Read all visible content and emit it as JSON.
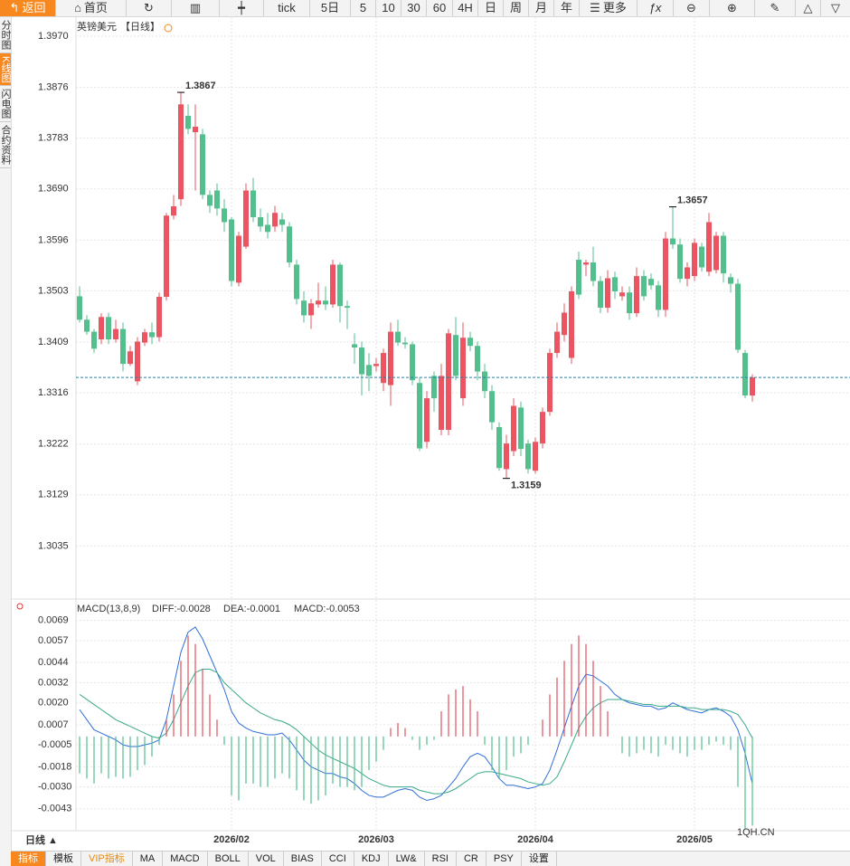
{
  "toolbar": {
    "back": "返回",
    "home": "首页",
    "items": [
      "tick",
      "5日",
      "5",
      "10",
      "30",
      "60",
      "4H",
      "日",
      "周",
      "月",
      "年"
    ],
    "more": "更多"
  },
  "sidebar": [
    "分时图",
    "K线图",
    "闪电图",
    "合约资料"
  ],
  "chart_data": [
    {
      "type": "candlestick",
      "title": "英镑美元",
      "subtitle": "【日线】",
      "categories": [
        null,
        null,
        null,
        null,
        null,
        null,
        null,
        null,
        null,
        null,
        null,
        null,
        null,
        null,
        null,
        null,
        null,
        null,
        null,
        null,
        null,
        "2026/02",
        null,
        null,
        null,
        null,
        null,
        null,
        null,
        null,
        null,
        null,
        null,
        null,
        null,
        null,
        null,
        null,
        null,
        null,
        null,
        "2026/03",
        null,
        null,
        null,
        null,
        null,
        null,
        null,
        null,
        null,
        null,
        null,
        null,
        null,
        null,
        null,
        null,
        null,
        null,
        null,
        null,
        null,
        "2026/04",
        null,
        null,
        null,
        null,
        null,
        null,
        null,
        null,
        null,
        null,
        null,
        null,
        null,
        null,
        null,
        null,
        null,
        null,
        null,
        null,
        null,
        "2026/05",
        null,
        null,
        null,
        null,
        null,
        null,
        null,
        null
      ],
      "open": [
        1.3493,
        1.345,
        1.3428,
        1.3414,
        1.3455,
        1.3414,
        1.3433,
        1.3369,
        1.3337,
        1.3408,
        1.3427,
        1.3418,
        1.3492,
        1.3641,
        1.3671,
        1.3824,
        1.3794,
        1.379,
        1.3679,
        1.3687,
        1.3654,
        1.3634,
        1.3518,
        1.3584,
        1.3687,
        1.3638,
        1.3624,
        1.3621,
        1.3634,
        1.3621,
        1.3551,
        1.3485,
        1.3458,
        1.3478,
        1.3485,
        1.3478,
        1.3551,
        1.3475,
        1.3405,
        1.3399,
        1.3367,
        1.3365,
        1.3334,
        1.333,
        1.3428,
        1.3408,
        1.3405,
        1.3334,
        1.3226,
        1.3347,
        1.3248,
        1.3248,
        1.3422,
        1.3306,
        1.3417,
        1.3402,
        1.3355,
        1.3319,
        1.3253,
        1.3176,
        1.3209,
        1.3289,
        1.3223,
        1.3173,
        1.3223,
        1.3281,
        1.3389,
        1.3422,
        1.338,
        1.356,
        1.3551,
        1.3555,
        1.3521,
        1.3472,
        1.3528,
        1.3493,
        1.35,
        1.3462,
        1.353,
        1.3525,
        1.3513,
        1.3468,
        1.3599,
        1.3588,
        1.3525,
        1.353,
        1.3584,
        1.3538,
        1.3541,
        1.3604,
        1.3528,
        1.3516,
        1.3389,
        1.3311
      ],
      "high": [
        1.3511,
        1.3458,
        1.3433,
        1.3462,
        1.3463,
        1.345,
        1.3445,
        1.3402,
        1.3418,
        1.3433,
        1.3445,
        1.35,
        1.3646,
        1.3679,
        1.3867,
        1.3845,
        1.3845,
        1.38,
        1.3687,
        1.37,
        1.3671,
        1.3638,
        1.3611,
        1.37,
        1.371,
        1.3654,
        1.3646,
        1.3659,
        1.3646,
        1.3629,
        1.356,
        1.3502,
        1.3488,
        1.3518,
        1.3511,
        1.356,
        1.3555,
        1.3485,
        1.3425,
        1.341,
        1.3389,
        1.338,
        1.3397,
        1.3445,
        1.345,
        1.3418,
        1.341,
        1.3344,
        1.3319,
        1.3355,
        1.3369,
        1.3433,
        1.3455,
        1.3445,
        1.3428,
        1.341,
        1.3369,
        1.333,
        1.3262,
        1.3239,
        1.3306,
        1.33,
        1.323,
        1.3234,
        1.3289,
        1.3397,
        1.3445,
        1.348,
        1.3511,
        1.3575,
        1.356,
        1.3584,
        1.353,
        1.3541,
        1.3538,
        1.3511,
        1.3511,
        1.3546,
        1.3541,
        1.3535,
        1.3521,
        1.3611,
        1.3657,
        1.3599,
        1.3555,
        1.3599,
        1.3591,
        1.3646,
        1.3611,
        1.3611,
        1.3535,
        1.3525,
        1.3395,
        1.335
      ],
      "low": [
        1.3445,
        1.3422,
        1.3389,
        1.3405,
        1.3405,
        1.3408,
        1.3355,
        1.3365,
        1.333,
        1.3402,
        1.3405,
        1.341,
        1.3485,
        1.3634,
        1.3659,
        1.379,
        1.3687,
        1.3671,
        1.3646,
        1.3641,
        1.3611,
        1.3511,
        1.3511,
        1.358,
        1.3629,
        1.3611,
        1.3599,
        1.3611,
        1.3611,
        1.3546,
        1.3478,
        1.3445,
        1.3433,
        1.3472,
        1.3468,
        1.3472,
        1.3445,
        1.3433,
        1.3369,
        1.3311,
        1.3319,
        1.3355,
        1.3319,
        1.3292,
        1.3402,
        1.3397,
        1.333,
        1.3209,
        1.3214,
        1.3281,
        1.3238,
        1.3238,
        1.3339,
        1.3292,
        1.3392,
        1.3339,
        1.3306,
        1.3248,
        1.3173,
        1.3159,
        1.32,
        1.32,
        1.3168,
        1.3168,
        1.3214,
        1.3274,
        1.338,
        1.341,
        1.3369,
        1.3488,
        1.353,
        1.3511,
        1.3462,
        1.3463,
        1.3488,
        1.3485,
        1.345,
        1.3455,
        1.3485,
        1.3505,
        1.3455,
        1.3455,
        1.358,
        1.3518,
        1.3511,
        1.3521,
        1.3538,
        1.353,
        1.3535,
        1.3518,
        1.35,
        1.3389,
        1.3306,
        1.33
      ],
      "close": [
        1.345,
        1.3428,
        1.3397,
        1.3455,
        1.3414,
        1.3433,
        1.3369,
        1.3392,
        1.341,
        1.3427,
        1.3418,
        1.3492,
        1.3641,
        1.3658,
        1.3845,
        1.38,
        1.3804,
        1.3679,
        1.3659,
        1.3654,
        1.3629,
        1.3521,
        1.3604,
        1.3687,
        1.3638,
        1.3621,
        1.3611,
        1.3646,
        1.3624,
        1.3555,
        1.3488,
        1.3458,
        1.348,
        1.3485,
        1.3478,
        1.3551,
        1.3475,
        1.3472,
        1.3399,
        1.335,
        1.3347,
        1.3369,
        1.3389,
        1.3428,
        1.3408,
        1.3405,
        1.3339,
        1.3214,
        1.3306,
        1.3306,
        1.3347,
        1.3425,
        1.3347,
        1.3417,
        1.3402,
        1.3355,
        1.3319,
        1.3262,
        1.3178,
        1.3223,
        1.3292,
        1.3213,
        1.3176,
        1.3226,
        1.3281,
        1.3389,
        1.3428,
        1.3463,
        1.3502,
        1.3496,
        1.3555,
        1.3521,
        1.3472,
        1.3526,
        1.3502,
        1.35,
        1.3462,
        1.353,
        1.3493,
        1.3513,
        1.3468,
        1.3599,
        1.3588,
        1.3525,
        1.3546,
        1.3591,
        1.3546,
        1.3629,
        1.3604,
        1.3535,
        1.3516,
        1.3395,
        1.3311,
        1.3344
      ],
      "up_color": "#eb5562",
      "down_color": "#52bf8c",
      "ylim": [
        1.2941,
        1.397
      ],
      "yticks": [
        {
          "value": 1.397,
          "label": "1.3970"
        },
        1.3876,
        1.3783,
        {
          "value": 1.369,
          "label": "1.3690"
        },
        1.3596,
        1.3503,
        1.3409,
        1.3316,
        1.3222,
        1.3129,
        1.3035
      ],
      "grid": true,
      "annotations": [
        1.3867,
        1.3657,
        1.3159
      ]
    },
    {
      "type": "macd",
      "title": "MACD(13,8,9)",
      "series": [
        {
          "name": "DIFF:-0.0028",
          "color": "#2f6fd8",
          "values": [
            0.0016,
            0.001,
            0.0004,
            0.0002,
            0,
            -0.0002,
            -0.0005,
            -0.0006,
            -0.0006,
            -0.0005,
            -0.0004,
            -0.0002,
            0.001,
            0.003,
            0.005,
            0.0062,
            0.0065,
            0.0058,
            0.0048,
            0.0038,
            0.0028,
            0.0015,
            0.0008,
            0.0005,
            0.0003,
            0.0002,
            0.0001,
            0.0001,
            0.0002,
            -0.0002,
            -0.0008,
            -0.0014,
            -0.0018,
            -0.002,
            -0.0022,
            -0.0022,
            -0.0024,
            -0.0025,
            -0.0028,
            -0.0032,
            -0.0035,
            -0.0036,
            -0.0036,
            -0.0034,
            -0.0032,
            -0.0031,
            -0.0032,
            -0.0036,
            -0.0038,
            -0.0037,
            -0.0035,
            -0.003,
            -0.0025,
            -0.0018,
            -0.0012,
            -0.001,
            -0.0012,
            -0.0018,
            -0.0025,
            -0.0029,
            -0.0029,
            -0.003,
            -0.0031,
            -0.003,
            -0.0028,
            -0.002,
            -0.0008,
            0.0005,
            0.0018,
            0.003,
            0.0037,
            0.0036,
            0.0033,
            0.003,
            0.0025,
            0.0022,
            0.002,
            0.0019,
            0.0018,
            0.0018,
            0.0016,
            0.0017,
            0.002,
            0.0018,
            0.0016,
            0.0015,
            0.0014,
            0.0016,
            0.0017,
            0.0015,
            0.0012,
            0.0004,
            -0.001,
            -0.0028
          ]
        },
        {
          "name": "DEA:-0.0001",
          "color": "#3aa88a",
          "values": [
            0.0025,
            0.0022,
            0.0019,
            0.0016,
            0.0013,
            0.001,
            0.0008,
            0.0006,
            0.0004,
            0.0002,
            0,
            -0.0001,
            0.0002,
            0.001,
            0.002,
            0.003,
            0.0038,
            0.004,
            0.004,
            0.0038,
            0.0032,
            0.0028,
            0.0024,
            0.002,
            0.0017,
            0.0014,
            0.0012,
            0.001,
            0.0009,
            0.0007,
            0.0004,
            0,
            -0.0004,
            -0.0008,
            -0.0011,
            -0.0013,
            -0.0015,
            -0.0017,
            -0.0019,
            -0.0022,
            -0.0025,
            -0.0027,
            -0.0029,
            -0.003,
            -0.003,
            -0.003,
            -0.003,
            -0.0032,
            -0.0033,
            -0.0034,
            -0.0034,
            -0.0033,
            -0.0031,
            -0.0028,
            -0.0025,
            -0.0022,
            -0.0021,
            -0.0021,
            -0.0022,
            -0.0023,
            -0.0024,
            -0.0025,
            -0.0027,
            -0.0028,
            -0.0029,
            -0.0028,
            -0.0024,
            -0.0015,
            -0.0005,
            0.0005,
            0.0012,
            0.0017,
            0.002,
            0.0022,
            0.0022,
            0.0022,
            0.0021,
            0.002,
            0.0019,
            0.0019,
            0.0018,
            0.0018,
            0.0018,
            0.0018,
            0.0017,
            0.0017,
            0.0016,
            0.0016,
            0.0016,
            0.0016,
            0.0015,
            0.0013,
            0.0007,
            -0.0001
          ]
        },
        {
          "name": "MACD:-0.0053",
          "type": "histogram",
          "color": "#2aa6b8",
          "up_color": "#e0505e",
          "down_color": "#52bf8c",
          "values": [
            -0.0022,
            -0.0025,
            -0.0028,
            -0.0022,
            -0.0025,
            -0.0024,
            -0.0025,
            -0.0024,
            -0.002,
            -0.0017,
            -0.0012,
            -0.0005,
            0.001,
            0.0025,
            0.0045,
            0.006,
            0.0055,
            0.004,
            0.0025,
            0.001,
            -0.0005,
            -0.0035,
            -0.0038,
            -0.0028,
            -0.0028,
            -0.003,
            -0.003,
            -0.0025,
            -0.0022,
            -0.0025,
            -0.0032,
            -0.0038,
            -0.004,
            -0.0038,
            -0.0035,
            -0.0028,
            -0.003,
            -0.003,
            -0.0032,
            -0.003,
            -0.002,
            -0.0015,
            -0.0008,
            0.0005,
            0.0008,
            0.0005,
            -0.0002,
            -0.0008,
            -0.0005,
            -0.0002,
            0.0015,
            0.0025,
            0.0028,
            0.003,
            0.0022,
            0.0015,
            -0.0005,
            -0.002,
            -0.0025,
            -0.002,
            -0.0012,
            -0.001,
            -0.0005,
            0,
            0.001,
            0.0025,
            0.0035,
            0.0045,
            0.0055,
            0.006,
            0.0055,
            0.0045,
            0.003,
            0.0015,
            0,
            -0.001,
            -0.0012,
            -0.001,
            -0.0008,
            -0.001,
            -0.0012,
            -0.0005,
            -0.0008,
            -0.001,
            -0.0012,
            -0.0008,
            -0.0008,
            -0.0005,
            -0.0003,
            -0.0005,
            -0.0008,
            -0.003,
            -0.0055,
            -0.0053
          ]
        }
      ],
      "ylim": [
        -0.0056,
        0.0072
      ],
      "yticks": [
        0.0069,
        0.0057,
        0.0044,
        0.0032,
        {
          "value": 0.002,
          "label": "0.0020"
        },
        0.0007,
        -0.0005,
        -0.0018,
        {
          "value": -0.003,
          "label": "-0.0030"
        },
        -0.0043
      ]
    }
  ],
  "period": "日线 ▲",
  "tabs": [
    "指标",
    "模板",
    "VIP指标",
    "MA",
    "MACD",
    "BOLL",
    "VOL",
    "BIAS",
    "CCI",
    "KDJ",
    "LW&",
    "RSI",
    "CR",
    "PSY",
    "设置"
  ],
  "watermark": "1QH.CN"
}
